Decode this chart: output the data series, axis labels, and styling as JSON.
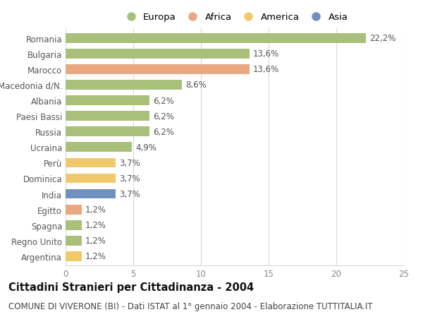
{
  "categories": [
    "Romania",
    "Bulgaria",
    "Marocco",
    "Macedonia d/N.",
    "Albania",
    "Paesi Bassi",
    "Russia",
    "Ucraina",
    "Perù",
    "Dominica",
    "India",
    "Egitto",
    "Spagna",
    "Regno Unito",
    "Argentina"
  ],
  "values": [
    22.2,
    13.6,
    13.6,
    8.6,
    6.2,
    6.2,
    6.2,
    4.9,
    3.7,
    3.7,
    3.7,
    1.2,
    1.2,
    1.2,
    1.2
  ],
  "labels": [
    "22,2%",
    "13,6%",
    "13,6%",
    "8,6%",
    "6,2%",
    "6,2%",
    "6,2%",
    "4,9%",
    "3,7%",
    "3,7%",
    "3,7%",
    "1,2%",
    "1,2%",
    "1,2%",
    "1,2%"
  ],
  "continents": [
    "Europa",
    "Europa",
    "Africa",
    "Europa",
    "Europa",
    "Europa",
    "Europa",
    "Europa",
    "America",
    "America",
    "Asia",
    "Africa",
    "Europa",
    "Europa",
    "America"
  ],
  "colors": {
    "Europa": "#a8c07a",
    "Africa": "#e8a882",
    "America": "#f0c96a",
    "Asia": "#7090c0"
  },
  "legend_order": [
    "Europa",
    "Africa",
    "America",
    "Asia"
  ],
  "title": "Cittadini Stranieri per Cittadinanza - 2004",
  "subtitle": "COMUNE DI VIVERONE (BI) - Dati ISTAT al 1° gennaio 2004 - Elaborazione TUTTITALIA.IT",
  "xlim": [
    0,
    25
  ],
  "xticks": [
    0,
    5,
    10,
    15,
    20,
    25
  ],
  "background_color": "#ffffff",
  "grid_color": "#d8d8d8",
  "bar_height": 0.62,
  "title_fontsize": 10.5,
  "subtitle_fontsize": 8.5,
  "label_fontsize": 8.5,
  "tick_fontsize": 8.5,
  "legend_fontsize": 9.5
}
